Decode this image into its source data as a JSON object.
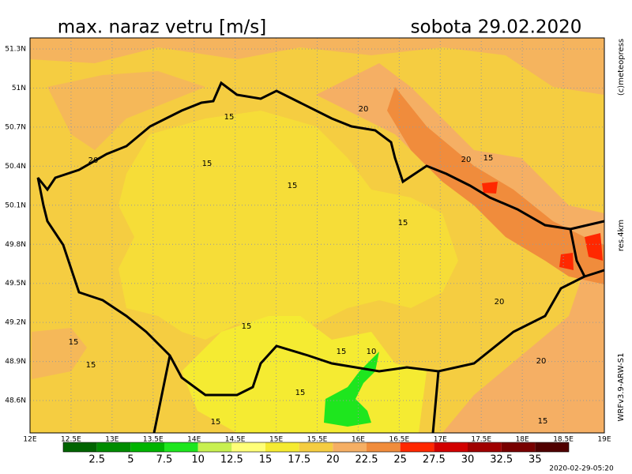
{
  "header": {
    "title": "max. naraz vetru [m/s]",
    "date": "sobota 29.02.2020"
  },
  "side": {
    "copyright": "(c)meteopress",
    "resolution": "res.4km",
    "model": "WRFv3.9-ARW-S1"
  },
  "timestamp": "2020-02-29-05:20",
  "lat_labels": [
    "51.3N",
    "51N",
    "50.7N",
    "50.4N",
    "50.1N",
    "49.8N",
    "49.5N",
    "49.2N",
    "48.9N",
    "48.6N"
  ],
  "lon_labels": [
    "12E",
    "12.5E",
    "13E",
    "13.5E",
    "14E",
    "14.5E",
    "15E",
    "15.5E",
    "16E",
    "16.5E",
    "17E",
    "17.5E",
    "18E",
    "18.5E",
    "19E"
  ],
  "colorbar": {
    "labels": [
      2.5,
      5,
      7.5,
      10,
      12.5,
      15,
      17.5,
      20,
      22.5,
      25,
      27.5,
      30,
      32.5,
      35
    ],
    "colors": [
      "#006400",
      "#008c00",
      "#00b400",
      "#1ee61e",
      "#c8f050",
      "#ffff78",
      "#f5eb32",
      "#f5cd41",
      "#f5af64",
      "#f08c3c",
      "#ff2800",
      "#d20000",
      "#a00000",
      "#780000",
      "#500000"
    ]
  },
  "contour_labels": [
    20,
    15,
    15,
    15,
    20,
    15,
    20,
    15,
    20,
    15,
    15,
    15,
    15,
    10,
    20,
    15,
    15,
    15
  ]
}
